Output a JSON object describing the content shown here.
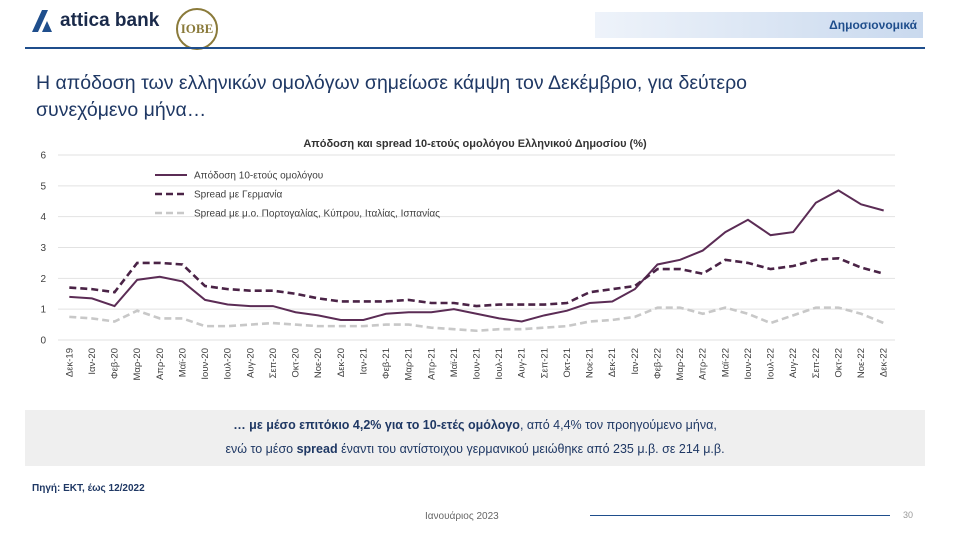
{
  "slide": {
    "brand": "attica bank",
    "partner_logo": "ΙΟΒΕ",
    "section": "Δημοσιονομικά",
    "title_lines": [
      "Η απόδοση των ελληνικών ομολόγων σημείωσε κάμψη τον Δεκέμβριο, για δεύτερο",
      "συνεχόμενο μήνα…"
    ],
    "summary_line1": [
      {
        "text": "… με μέσο επιτόκιο 4,2% για το 10-ετές ομόλογο",
        "bold": true
      },
      {
        "text": ", από 4,4% τον προηγούμενο μήνα,",
        "bold": false
      }
    ],
    "summary_line2": [
      {
        "text": "ενώ το μέσο ",
        "bold": false
      },
      {
        "text": "spread",
        "bold": true
      },
      {
        "text": " έναντι του αντίστοιχου γερμανικού  μειώθηκε από 235 μ.β. σε 214 μ.β.",
        "bold": false
      }
    ],
    "source": "Πηγή: ΕΚΤ, έως 12/2022",
    "footer": "Ιανουάριος 2023",
    "page_number": "30"
  },
  "chart_data": {
    "type": "line",
    "title": "Απόδοση και spread 10-ετούς ομολόγου Ελληνικού Δημοσίου (%)",
    "categories": [
      "Δεκ-19",
      "Ιαν-20",
      "Φεβ-20",
      "Μαρ-20",
      "Απρ-20",
      "Μαϊ-20",
      "Ιουν-20",
      "Ιουλ-20",
      "Αυγ-20",
      "Σεπ-20",
      "Οκτ-20",
      "Νοε-20",
      "Δεκ-20",
      "Ιαν-21",
      "Φεβ-21",
      "Μαρ-21",
      "Απρ-21",
      "Μαϊ-21",
      "Ιουν-21",
      "Ιουλ-21",
      "Αυγ-21",
      "Σεπ-21",
      "Οκτ-21",
      "Νοε-21",
      "Δεκ-21",
      "Ιαν-22",
      "Φεβ-22",
      "Μαρ-22",
      "Απρ-22",
      "Μαϊ-22",
      "Ιουν-22",
      "Ιουλ-22",
      "Αυγ-22",
      "Σεπ-22",
      "Οκτ-22",
      "Νοε-22",
      "Δεκ-22"
    ],
    "series": [
      {
        "name": "Απόδοση 10-ετούς ομολόγου",
        "color": "#5b2c55",
        "style": "solid",
        "values": [
          1.4,
          1.35,
          1.1,
          1.95,
          2.05,
          1.9,
          1.3,
          1.15,
          1.1,
          1.1,
          0.9,
          0.8,
          0.65,
          0.65,
          0.85,
          0.9,
          0.9,
          1.0,
          0.85,
          0.7,
          0.6,
          0.8,
          0.95,
          1.2,
          1.25,
          1.65,
          2.45,
          2.6,
          2.9,
          3.5,
          3.9,
          3.4,
          3.5,
          4.45,
          4.85,
          4.4,
          4.2
        ]
      },
      {
        "name": "Spread με Γερμανία",
        "color": "#4a2346",
        "style": "dashed",
        "values": [
          1.7,
          1.65,
          1.55,
          2.5,
          2.5,
          2.45,
          1.75,
          1.65,
          1.6,
          1.6,
          1.5,
          1.35,
          1.25,
          1.25,
          1.25,
          1.3,
          1.2,
          1.2,
          1.1,
          1.15,
          1.15,
          1.15,
          1.2,
          1.55,
          1.65,
          1.75,
          2.3,
          2.3,
          2.15,
          2.6,
          2.5,
          2.3,
          2.4,
          2.6,
          2.65,
          2.35,
          2.15
        ]
      },
      {
        "name": "Spread με μ.ο. Πορτογαλίας, Κύπρου, Ιταλίας, Ισπανίας",
        "color": "#c8c8c8",
        "style": "dashed",
        "values": [
          0.75,
          0.7,
          0.6,
          0.95,
          0.7,
          0.7,
          0.45,
          0.45,
          0.5,
          0.55,
          0.5,
          0.45,
          0.45,
          0.45,
          0.5,
          0.5,
          0.4,
          0.35,
          0.3,
          0.35,
          0.35,
          0.4,
          0.45,
          0.6,
          0.65,
          0.75,
          1.05,
          1.05,
          0.85,
          1.05,
          0.85,
          0.55,
          0.8,
          1.05,
          1.05,
          0.85,
          0.55
        ]
      }
    ],
    "ylim": [
      0,
      6
    ],
    "yticks": [
      0,
      1,
      2,
      3,
      4,
      5,
      6
    ],
    "grid": true,
    "legend": "top-left"
  }
}
